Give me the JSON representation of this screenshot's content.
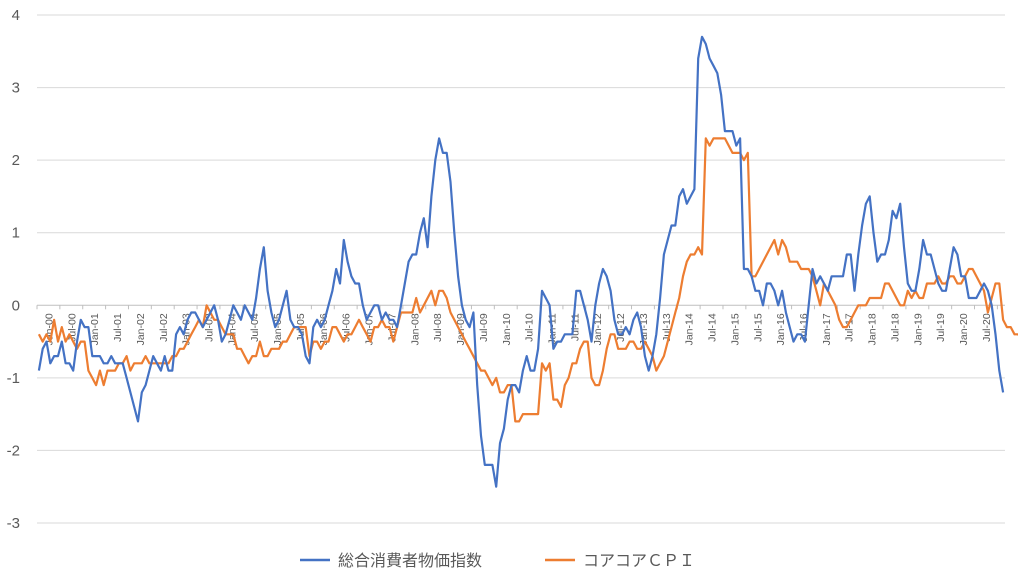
{
  "chart_data": {
    "type": "line",
    "title": "",
    "xlabel": "",
    "ylabel": "",
    "ylim": [
      -3,
      4
    ],
    "yticks": [
      "4",
      "3",
      "2",
      "1",
      "0",
      "-1",
      "-2",
      "-3"
    ],
    "start_month": "2000-01",
    "xtick_labels": [
      "Jan-00",
      "Jul-00",
      "Jan-01",
      "Jul-01",
      "Jan-02",
      "Jul-02",
      "Jan-03",
      "Jul-03",
      "Jan-04",
      "Jul-04",
      "Jan-05",
      "Jul-05",
      "Jan-06",
      "Jul-06",
      "Jan-07",
      "Jul-07",
      "Jan-08",
      "Jul-08",
      "Jan-09",
      "Jul-09",
      "Jan-10",
      "Jul-10",
      "Jan-11",
      "Jul-11",
      "Jan-12",
      "Jul-12",
      "Jan-13",
      "Jul-13",
      "Jan-14",
      "Jul-14",
      "Jan-15",
      "Jul-15",
      "Jan-16",
      "Jul-16",
      "Jan-17",
      "Jul-17",
      "Jan-18",
      "Jul-18",
      "Jan-19",
      "Jul-19",
      "Jan-20",
      "Jul-20"
    ],
    "grid": "horizontal",
    "legend_position": "bottom",
    "series": [
      {
        "name": "総合消費者物価指数",
        "color": "#4472c4",
        "values": [
          -0.9,
          -0.6,
          -0.5,
          -0.8,
          -0.7,
          -0.7,
          -0.5,
          -0.8,
          -0.8,
          -0.9,
          -0.5,
          -0.2,
          -0.3,
          -0.3,
          -0.7,
          -0.7,
          -0.7,
          -0.8,
          -0.8,
          -0.7,
          -0.8,
          -0.8,
          -0.8,
          -1.0,
          -1.2,
          -1.4,
          -1.6,
          -1.2,
          -1.1,
          -0.9,
          -0.7,
          -0.8,
          -0.9,
          -0.7,
          -0.9,
          -0.9,
          -0.4,
          -0.3,
          -0.4,
          -0.2,
          -0.1,
          -0.1,
          -0.2,
          -0.3,
          -0.2,
          -0.1,
          0.0,
          -0.2,
          -0.5,
          -0.4,
          -0.2,
          0.0,
          -0.1,
          -0.2,
          0.0,
          -0.1,
          -0.2,
          0.1,
          0.5,
          0.8,
          0.2,
          -0.1,
          -0.3,
          -0.2,
          0.0,
          0.2,
          -0.2,
          -0.3,
          -0.3,
          -0.4,
          -0.7,
          -0.8,
          -0.3,
          -0.2,
          -0.3,
          -0.2,
          0.0,
          0.2,
          0.5,
          0.3,
          0.9,
          0.6,
          0.4,
          0.3,
          0.3,
          0.0,
          -0.2,
          -0.1,
          0.0,
          0.0,
          -0.2,
          -0.1,
          -0.2,
          -0.2,
          -0.3,
          0.0,
          0.3,
          0.6,
          0.7,
          0.7,
          1.0,
          1.2,
          0.8,
          1.5,
          2.0,
          2.3,
          2.1,
          2.1,
          1.7,
          1.0,
          0.4,
          0.0,
          -0.2,
          -0.3,
          -0.1,
          -1.1,
          -1.8,
          -2.2,
          -2.2,
          -2.2,
          -2.5,
          -1.9,
          -1.7,
          -1.3,
          -1.1,
          -1.1,
          -1.2,
          -0.9,
          -0.7,
          -0.9,
          -0.9,
          -0.6,
          0.2,
          0.1,
          0.0,
          -0.6,
          -0.5,
          -0.5,
          -0.4,
          -0.4,
          -0.4,
          0.2,
          0.2,
          0.0,
          -0.2,
          -0.5,
          0.0,
          0.3,
          0.5,
          0.4,
          0.2,
          -0.2,
          -0.4,
          -0.4,
          -0.3,
          -0.4,
          -0.2,
          -0.1,
          -0.3,
          -0.7,
          -0.9,
          -0.7,
          -0.4,
          0.1,
          0.7,
          0.9,
          1.1,
          1.1,
          1.5,
          1.6,
          1.4,
          1.5,
          1.6,
          3.4,
          3.7,
          3.6,
          3.4,
          3.3,
          3.2,
          2.9,
          2.4,
          2.4,
          2.4,
          2.2,
          2.3,
          0.5,
          0.5,
          0.4,
          0.2,
          0.2,
          0.0,
          0.3,
          0.3,
          0.2,
          0.0,
          0.2,
          -0.1,
          -0.3,
          -0.5,
          -0.4,
          -0.4,
          -0.5,
          0.0,
          0.5,
          0.3,
          0.4,
          0.3,
          0.2,
          0.4,
          0.4,
          0.4,
          0.4,
          0.7,
          0.7,
          0.2,
          0.7,
          1.1,
          1.4,
          1.5,
          1.0,
          0.6,
          0.7,
          0.7,
          0.9,
          1.3,
          1.2,
          1.4,
          0.8,
          0.3,
          0.2,
          0.2,
          0.5,
          0.9,
          0.7,
          0.7,
          0.5,
          0.3,
          0.2,
          0.2,
          0.5,
          0.8,
          0.7,
          0.4,
          0.4,
          0.1,
          0.1,
          0.1,
          0.2,
          0.3,
          0.2,
          0.0,
          -0.4,
          -0.9,
          -1.2
        ]
      },
      {
        "name": "コアコアＣＰＩ",
        "color": "#ed7d31",
        "values": [
          -0.4,
          -0.5,
          -0.4,
          -0.5,
          -0.2,
          -0.5,
          -0.3,
          -0.5,
          -0.4,
          -0.5,
          -0.6,
          -0.5,
          -0.5,
          -0.9,
          -1.0,
          -1.1,
          -0.9,
          -1.1,
          -0.9,
          -0.9,
          -0.9,
          -0.8,
          -0.8,
          -0.7,
          -0.9,
          -0.8,
          -0.8,
          -0.8,
          -0.7,
          -0.8,
          -0.8,
          -0.8,
          -0.8,
          -0.8,
          -0.8,
          -0.7,
          -0.7,
          -0.6,
          -0.6,
          -0.5,
          -0.4,
          -0.3,
          -0.2,
          -0.3,
          0.0,
          -0.1,
          -0.2,
          -0.2,
          -0.3,
          -0.4,
          -0.4,
          -0.4,
          -0.6,
          -0.6,
          -0.7,
          -0.8,
          -0.7,
          -0.7,
          -0.5,
          -0.7,
          -0.7,
          -0.6,
          -0.6,
          -0.6,
          -0.5,
          -0.5,
          -0.4,
          -0.3,
          -0.3,
          -0.3,
          -0.3,
          -0.7,
          -0.5,
          -0.5,
          -0.6,
          -0.5,
          -0.5,
          -0.3,
          -0.3,
          -0.4,
          -0.5,
          -0.4,
          -0.4,
          -0.3,
          -0.2,
          -0.3,
          -0.4,
          -0.5,
          -0.3,
          -0.3,
          -0.2,
          -0.3,
          -0.3,
          -0.5,
          -0.3,
          -0.1,
          -0.1,
          -0.1,
          -0.1,
          0.1,
          -0.1,
          0.0,
          0.1,
          0.2,
          0.0,
          0.2,
          0.2,
          0.1,
          -0.1,
          -0.2,
          -0.3,
          -0.4,
          -0.5,
          -0.6,
          -0.7,
          -0.8,
          -0.9,
          -0.9,
          -1.0,
          -1.1,
          -1.0,
          -1.2,
          -1.2,
          -1.1,
          -1.1,
          -1.6,
          -1.6,
          -1.5,
          -1.5,
          -1.5,
          -1.5,
          -1.5,
          -0.8,
          -0.9,
          -0.8,
          -1.3,
          -1.3,
          -1.4,
          -1.1,
          -1.0,
          -0.8,
          -0.8,
          -0.6,
          -0.5,
          -0.5,
          -1.0,
          -1.1,
          -1.1,
          -0.9,
          -0.6,
          -0.4,
          -0.4,
          -0.6,
          -0.6,
          -0.6,
          -0.5,
          -0.5,
          -0.6,
          -0.6,
          -0.5,
          -0.6,
          -0.7,
          -0.9,
          -0.8,
          -0.7,
          -0.5,
          -0.3,
          -0.1,
          0.1,
          0.4,
          0.6,
          0.7,
          0.7,
          0.8,
          0.7,
          2.3,
          2.2,
          2.3,
          2.3,
          2.3,
          2.3,
          2.2,
          2.1,
          2.1,
          2.1,
          2.0,
          2.1,
          0.4,
          0.4,
          0.5,
          0.6,
          0.7,
          0.8,
          0.9,
          0.7,
          0.9,
          0.8,
          0.6,
          0.6,
          0.6,
          0.5,
          0.5,
          0.5,
          0.4,
          0.2,
          0.0,
          0.3,
          0.2,
          0.1,
          0.0,
          -0.2,
          -0.3,
          -0.3,
          -0.2,
          -0.1,
          0.0,
          0.0,
          0.0,
          0.1,
          0.1,
          0.1,
          0.1,
          0.3,
          0.3,
          0.2,
          0.1,
          0.0,
          0.0,
          0.2,
          0.1,
          0.2,
          0.1,
          0.1,
          0.3,
          0.3,
          0.3,
          0.4,
          0.3,
          0.3,
          0.4,
          0.4,
          0.3,
          0.3,
          0.4,
          0.5,
          0.5,
          0.4,
          0.3,
          0.2,
          -0.1,
          0.1,
          0.3,
          0.3,
          -0.2,
          -0.3,
          -0.3,
          -0.4,
          -0.4,
          -0.5
        ]
      }
    ]
  }
}
